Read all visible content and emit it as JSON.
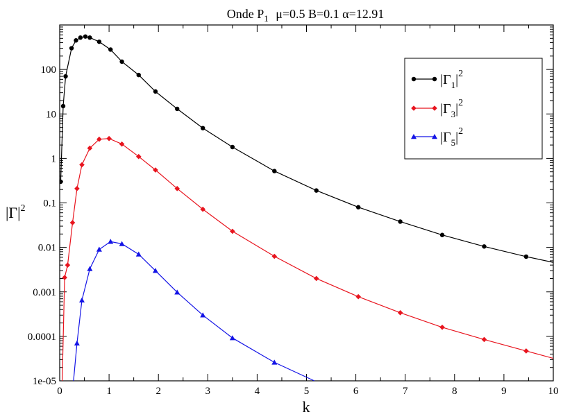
{
  "chart_data": {
    "type": "line",
    "title": {
      "main": "Onde P",
      "sub": "1",
      "params": "μ=0.5  B=0.1  α=12.91"
    },
    "xlabel": "k",
    "ylabel": {
      "main": "|Γ|",
      "sup": "2"
    },
    "x_scale": "linear",
    "y_scale": "log",
    "xlim": [
      0,
      10
    ],
    "ylim": [
      1e-05,
      1000
    ],
    "grid": false,
    "legend_position": "top-right",
    "x_ticks": [
      {
        "value": 0,
        "label": "0"
      },
      {
        "value": 1,
        "label": "1"
      },
      {
        "value": 2,
        "label": "2"
      },
      {
        "value": 3,
        "label": "3"
      },
      {
        "value": 4,
        "label": "4"
      },
      {
        "value": 5,
        "label": "5"
      },
      {
        "value": 6,
        "label": "6"
      },
      {
        "value": 7,
        "label": "7"
      },
      {
        "value": 8,
        "label": "8"
      },
      {
        "value": 9,
        "label": "9"
      },
      {
        "value": 10,
        "label": "10"
      }
    ],
    "y_ticks": [
      {
        "value": 100,
        "label": "100"
      },
      {
        "value": 10,
        "label": "10"
      },
      {
        "value": 1,
        "label": "1"
      },
      {
        "value": 0.1,
        "label": "0.1"
      },
      {
        "value": 0.01,
        "label": "0.01"
      },
      {
        "value": 0.001,
        "label": "0.001"
      },
      {
        "value": 0.0001,
        "label": "0.0001"
      },
      {
        "value": 1e-05,
        "label": "1e-05"
      }
    ],
    "series": [
      {
        "name": "|Γ1|²",
        "legend_main": "|Γ",
        "legend_sub": "1",
        "legend_tail": "|",
        "legend_sup": "2",
        "color": "#000000",
        "marker": "circle",
        "x": [
          0.02,
          0.07,
          0.12,
          0.24,
          0.33,
          0.42,
          0.52,
          0.61,
          0.8,
          1.03,
          1.26,
          1.6,
          1.94,
          2.38,
          2.9,
          3.5,
          4.35,
          5.2,
          6.05,
          6.9,
          7.75,
          8.6,
          9.45
        ],
        "y": [
          0.3,
          15,
          70,
          300,
          450,
          520,
          550,
          520,
          420,
          280,
          150,
          75,
          32,
          13,
          4.8,
          1.8,
          0.52,
          0.19,
          0.08,
          0.038,
          0.019,
          0.0105,
          0.0062
        ],
        "curve_end": {
          "x": 10,
          "y": 0.0046
        }
      },
      {
        "name": "|Γ3|²",
        "legend_main": "|Γ",
        "legend_sub": "3",
        "legend_tail": "|",
        "legend_sup": "2",
        "color": "#e8141e",
        "marker": "diamond",
        "x": [
          0.1,
          0.16,
          0.26,
          0.35,
          0.45,
          0.61,
          0.8,
          1.0,
          1.26,
          1.6,
          1.94,
          2.38,
          2.9,
          3.5,
          4.35,
          5.2,
          6.05,
          6.9,
          7.75,
          8.6,
          9.45
        ],
        "y": [
          0.0021,
          0.004,
          0.036,
          0.21,
          0.72,
          1.7,
          2.7,
          2.8,
          2.1,
          1.1,
          0.55,
          0.21,
          0.072,
          0.023,
          0.0063,
          0.002,
          0.00078,
          0.00034,
          0.00016,
          8.5e-05,
          4.7e-05
        ],
        "curve_start": {
          "x": 0.05,
          "y": 1e-05
        },
        "curve_end": {
          "x": 10,
          "y": 3.2e-05
        }
      },
      {
        "name": "|Γ5|²",
        "legend_main": "|Γ",
        "legend_sub": "5",
        "legend_tail": "|",
        "legend_sup": "2",
        "color": "#1414e6",
        "marker": "triangle",
        "x": [
          0.35,
          0.45,
          0.61,
          0.8,
          1.03,
          1.26,
          1.6,
          1.94,
          2.38,
          2.9,
          3.5,
          4.35
        ],
        "y": [
          7e-05,
          0.00065,
          0.0033,
          0.009,
          0.0135,
          0.012,
          0.007,
          0.003,
          0.00098,
          0.0003,
          9.2e-05,
          2.6e-05
        ],
        "curve_start": {
          "x": 0.28,
          "y": 1e-05
        },
        "curve_end": {
          "x": 5.16,
          "y": 1e-05
        }
      }
    ]
  }
}
